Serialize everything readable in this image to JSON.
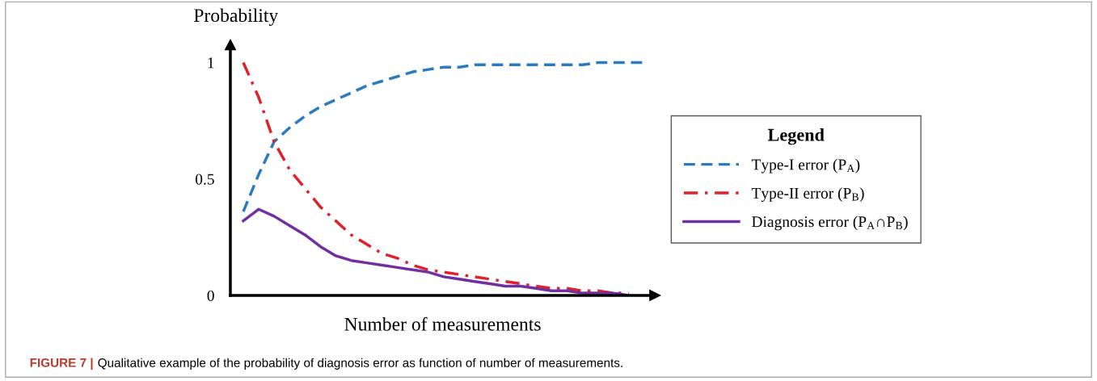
{
  "chart_data": {
    "type": "line",
    "ylabel": "Probability",
    "xlabel": "Number of measurements",
    "categories": [
      null,
      null,
      null,
      null,
      null,
      null,
      null,
      null,
      null,
      null,
      null,
      null,
      null,
      null,
      null,
      null,
      null,
      null,
      null,
      null,
      null,
      null,
      null,
      null,
      null,
      null,
      null
    ],
    "ylim": [
      0,
      1.06
    ],
    "yticks": [
      0,
      0.5,
      1
    ],
    "legend": "right",
    "legend_title": "Legend",
    "grid": false,
    "series": [
      {
        "name": "Type-I error (P$_{A}$)",
        "color": "#2a7bbf",
        "line_style": "dashed",
        "values": [
          0.36,
          0.52,
          0.66,
          0.72,
          0.77,
          0.81,
          0.84,
          0.87,
          0.9,
          0.92,
          0.94,
          0.96,
          0.97,
          0.98,
          0.98,
          0.99,
          0.99,
          0.99,
          0.99,
          0.99,
          0.99,
          0.99,
          0.99,
          1.0,
          1.0,
          1.0,
          1.0
        ]
      },
      {
        "name": "Type-II error (P$_{B}$)",
        "color": "#e0202a",
        "line_style": "dashdot",
        "values": [
          1.0,
          0.85,
          0.66,
          0.54,
          0.46,
          0.38,
          0.32,
          0.26,
          0.22,
          0.18,
          0.16,
          0.13,
          0.11,
          0.1,
          0.09,
          0.08,
          0.07,
          0.06,
          0.05,
          0.04,
          0.03,
          0.03,
          0.02,
          0.02,
          0.01,
          0.01,
          null
        ]
      },
      {
        "name": "Diagnosis error (P$_{A}$∩P$_{B}$)",
        "color": "#7030a0",
        "line_style": "solid",
        "values": [
          0.32,
          0.37,
          0.34,
          0.3,
          0.26,
          0.21,
          0.17,
          0.15,
          0.14,
          0.13,
          0.12,
          0.11,
          0.1,
          0.08,
          0.07,
          0.06,
          0.05,
          0.04,
          0.04,
          0.03,
          0.02,
          0.02,
          0.01,
          0.01,
          0.01,
          0.0,
          null
        ]
      }
    ],
    "annotations": [
      "FIGURE 7 | Qualitative example of the probability of diagnosis error as function of number of measurements."
    ]
  }
}
